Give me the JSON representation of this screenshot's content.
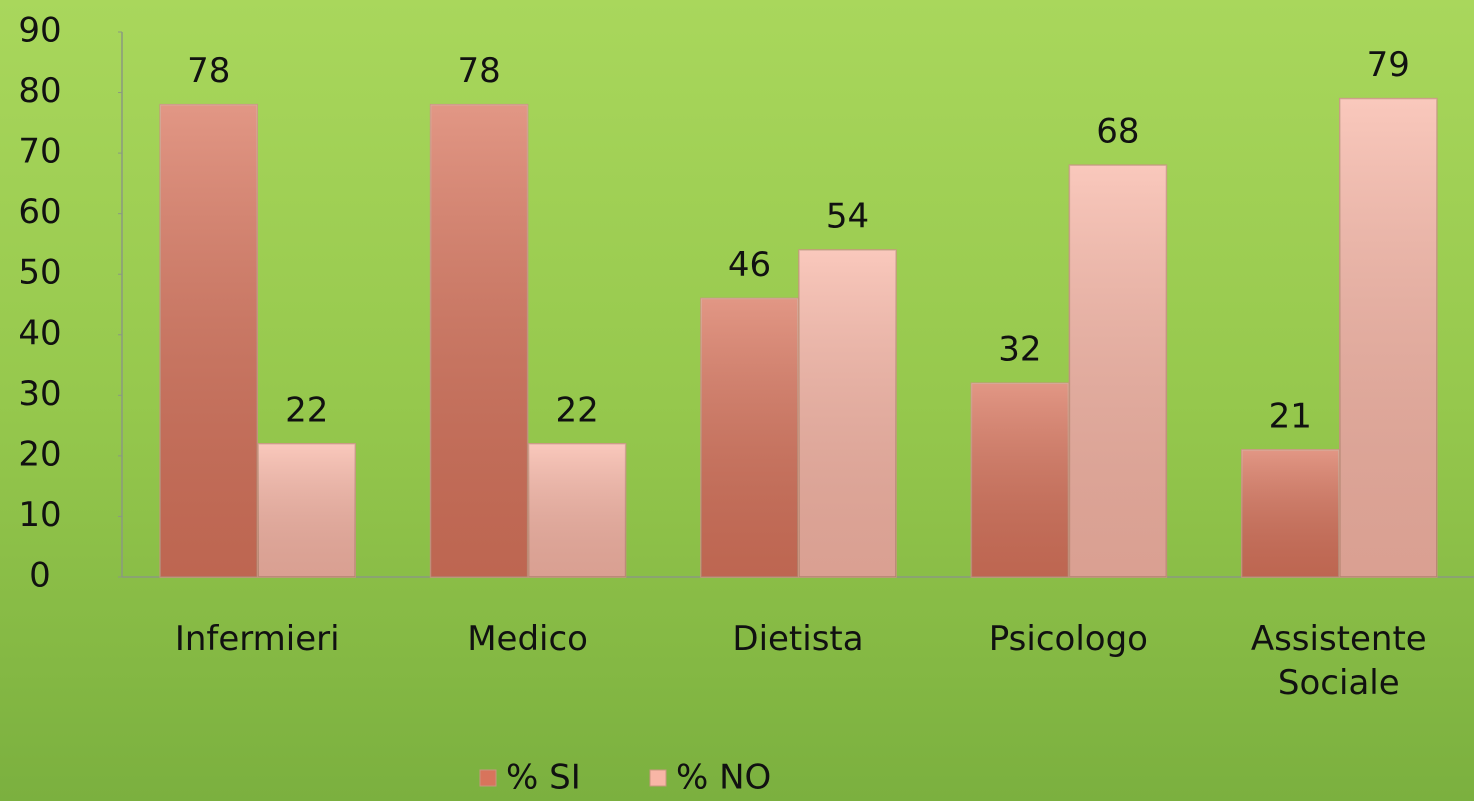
{
  "chart_data": {
    "type": "bar",
    "categories": [
      "Infermieri",
      "Medico",
      "Dietista",
      "Psicologo",
      "Assistente Sociale"
    ],
    "series": [
      {
        "name": "% SI",
        "color": "#d8745c",
        "values": [
          78,
          78,
          46,
          32,
          21
        ]
      },
      {
        "name": "% NO",
        "color": "#f8b6a6",
        "values": [
          22,
          22,
          54,
          68,
          79
        ]
      }
    ],
    "ylim": [
      0,
      90
    ],
    "yticks": [
      0,
      10,
      20,
      30,
      40,
      50,
      60,
      70,
      80,
      90
    ],
    "grid": false,
    "legend": "bottom"
  }
}
